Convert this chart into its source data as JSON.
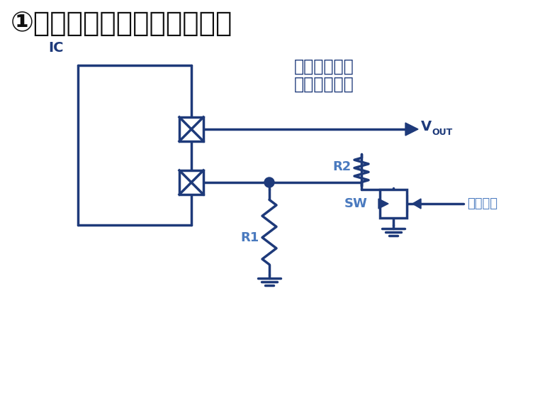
{
  "title": "①通过变更外置电阵值来切换",
  "title_color": "#111111",
  "title_fontsize": 28,
  "circuit_color": "#1e3a7a",
  "label_dark": "#1e3a7a",
  "label_light": "#4a7abf",
  "bg_color": "#ffffff",
  "note_line1": "外部零件增加",
  "note_line2": "电压精度降低",
  "ic_label": "IC",
  "r1_label": "R1",
  "r2_label": "R2",
  "sw_label": "SW",
  "vout_main": "V",
  "vout_sub": "OUT",
  "input_signal": "输入信号"
}
